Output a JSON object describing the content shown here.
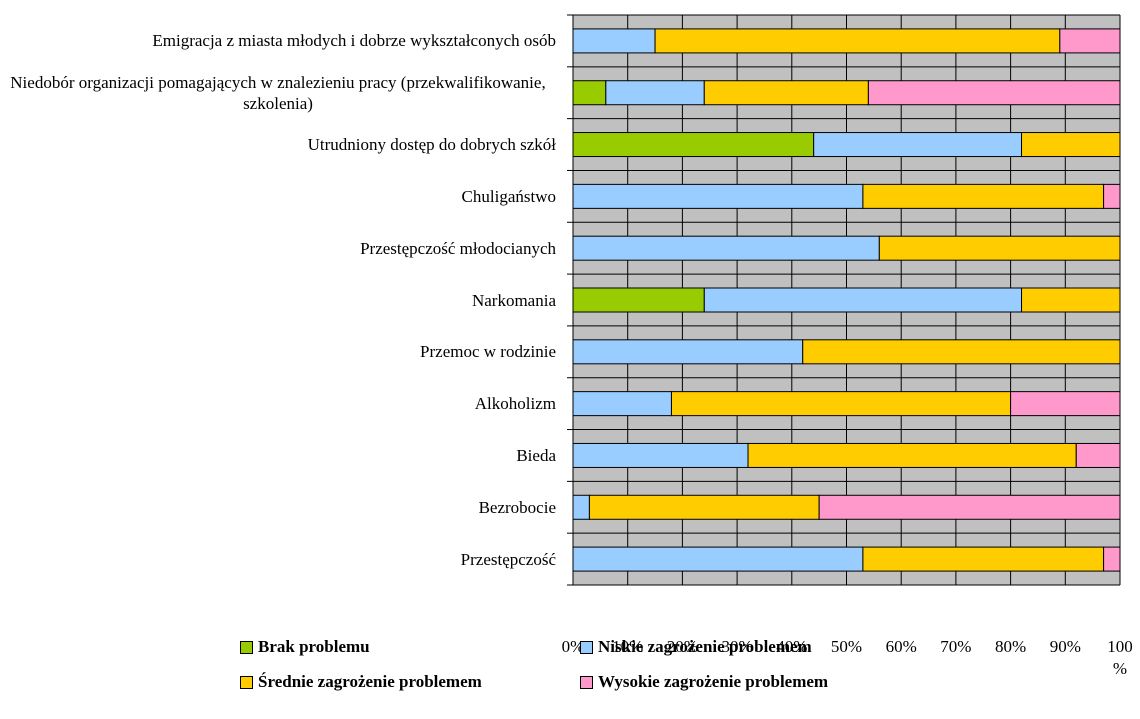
{
  "chart_data": {
    "type": "stacked-bar-horizontal",
    "categories": [
      "Emigracja z miasta młodych i dobrze wykształconych osób",
      "Niedobór organizacji pomagających w znalezieniu pracy (przekwalifikowanie, szkolenia)",
      "Utrudniony dostęp do dobrych szkół",
      "Chuligaństwo",
      "Przestępczość młodocianych",
      "Narkomania",
      "Przemoc w rodzinie",
      "Alkoholizm",
      "Bieda",
      "Bezrobocie",
      "Przestępczość"
    ],
    "series": [
      {
        "name": "Brak problemu",
        "color": "#99cc00",
        "values": [
          0,
          6,
          44,
          0,
          0,
          24,
          0,
          0,
          0,
          0,
          0
        ]
      },
      {
        "name": "Niskie zagrożenie problemem",
        "color": "#99ccff",
        "values": [
          15,
          18,
          38,
          53,
          56,
          58,
          42,
          18,
          32,
          3,
          53
        ]
      },
      {
        "name": "Średnie zagrożenie problemem",
        "color": "#ffcc00",
        "values": [
          74,
          30,
          18,
          44,
          44,
          18,
          58,
          62,
          60,
          42,
          44
        ]
      },
      {
        "name": "Wysokie zagrożenie problemem",
        "color": "#ff99cc",
        "values": [
          11,
          46,
          0,
          3,
          0,
          0,
          0,
          20,
          8,
          55,
          3
        ]
      }
    ],
    "xlim": [
      0,
      100
    ],
    "xticks": [
      {
        "value": 0,
        "label": "0%"
      },
      {
        "value": 10,
        "label": "10%"
      },
      {
        "value": 20,
        "label": "20%"
      },
      {
        "value": 30,
        "label": "30%"
      },
      {
        "value": 40,
        "label": "40%"
      },
      {
        "value": 50,
        "label": "50%"
      },
      {
        "value": 60,
        "label": "60%"
      },
      {
        "value": 70,
        "label": "70%"
      },
      {
        "value": 80,
        "label": "80%"
      },
      {
        "value": 90,
        "label": "90%"
      },
      {
        "value": 100,
        "label": "100 %"
      }
    ],
    "grid": true
  }
}
